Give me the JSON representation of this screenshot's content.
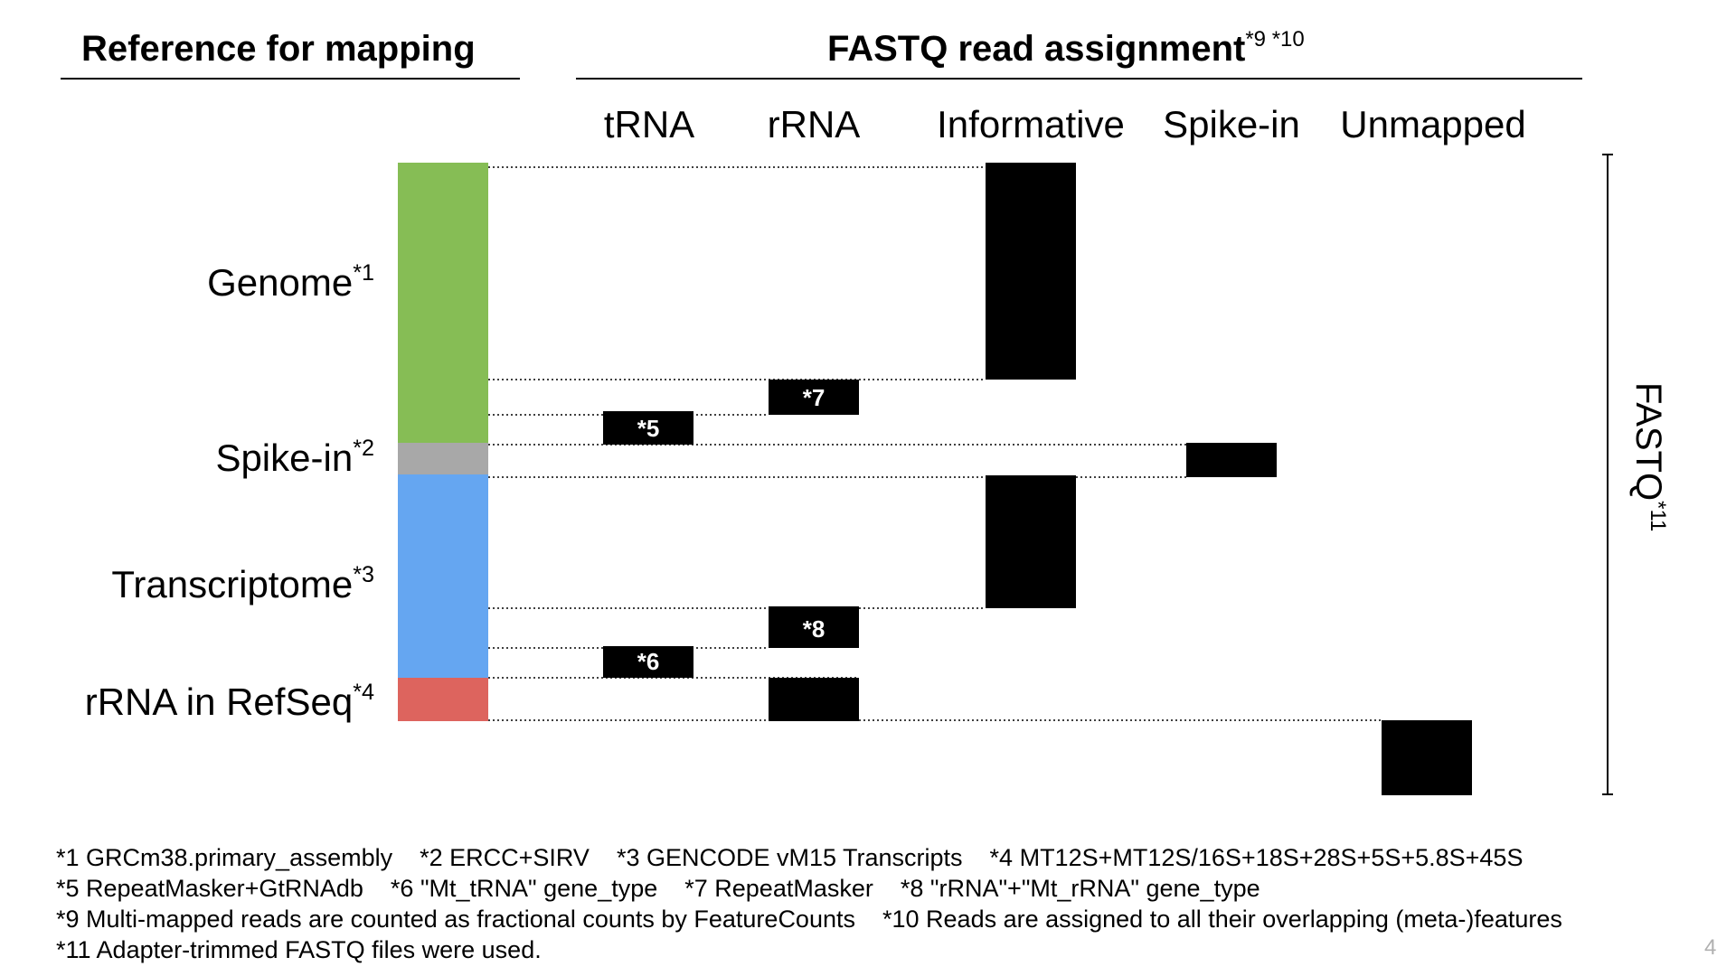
{
  "headers": {
    "left": "Reference for mapping",
    "right": "FASTQ read assignment",
    "right_sup": "*9 *10"
  },
  "columns": [
    "tRNA",
    "rRNA",
    "Informative",
    "Spike-in",
    "Unmapped"
  ],
  "references": [
    {
      "label": "Genome",
      "sup": "*1",
      "color": "#86bd55"
    },
    {
      "label": "Spike-in",
      "sup": "*2",
      "color": "#a8a8a8"
    },
    {
      "label": "Transcriptome",
      "sup": "*3",
      "color": "#65a6f1"
    },
    {
      "label": "rRNA in RefSeq",
      "sup": "*4",
      "color": "#dd645e"
    }
  ],
  "blocks": [
    {
      "name": "genome-informative"
    },
    {
      "name": "genome-rrna",
      "tag": "*7"
    },
    {
      "name": "genome-trna",
      "tag": "*5"
    },
    {
      "name": "spikein-spikein"
    },
    {
      "name": "transcriptome-informative"
    },
    {
      "name": "transcriptome-rrna",
      "tag": "*8"
    },
    {
      "name": "transcriptome-trna",
      "tag": "*6"
    },
    {
      "name": "refseq-rrna"
    },
    {
      "name": "unmapped"
    }
  ],
  "side": {
    "label": "FASTQ",
    "sup": "*11"
  },
  "footnotes": [
    [
      "*1 GRCm38.primary_assembly",
      "*2 ERCC+SIRV",
      "*3 GENCODE vM15 Transcripts",
      "*4 MT12S+MT12S/16S+18S+28S+5S+5.8S+45S"
    ],
    [
      "*5 RepeatMasker+GtRNAdb",
      "*6 \"Mt_tRNA\" gene_type",
      "*7 RepeatMasker",
      "*8 \"rRNA\"+\"Mt_rRNA\" gene_type"
    ],
    [
      "*9 Multi-mapped reads are counted as fractional counts by FeatureCounts",
      "*10 Reads are assigned to all their overlapping (meta-)features"
    ],
    [
      "*11 Adapter-trimmed FASTQ files were used."
    ]
  ],
  "page_number": "4"
}
